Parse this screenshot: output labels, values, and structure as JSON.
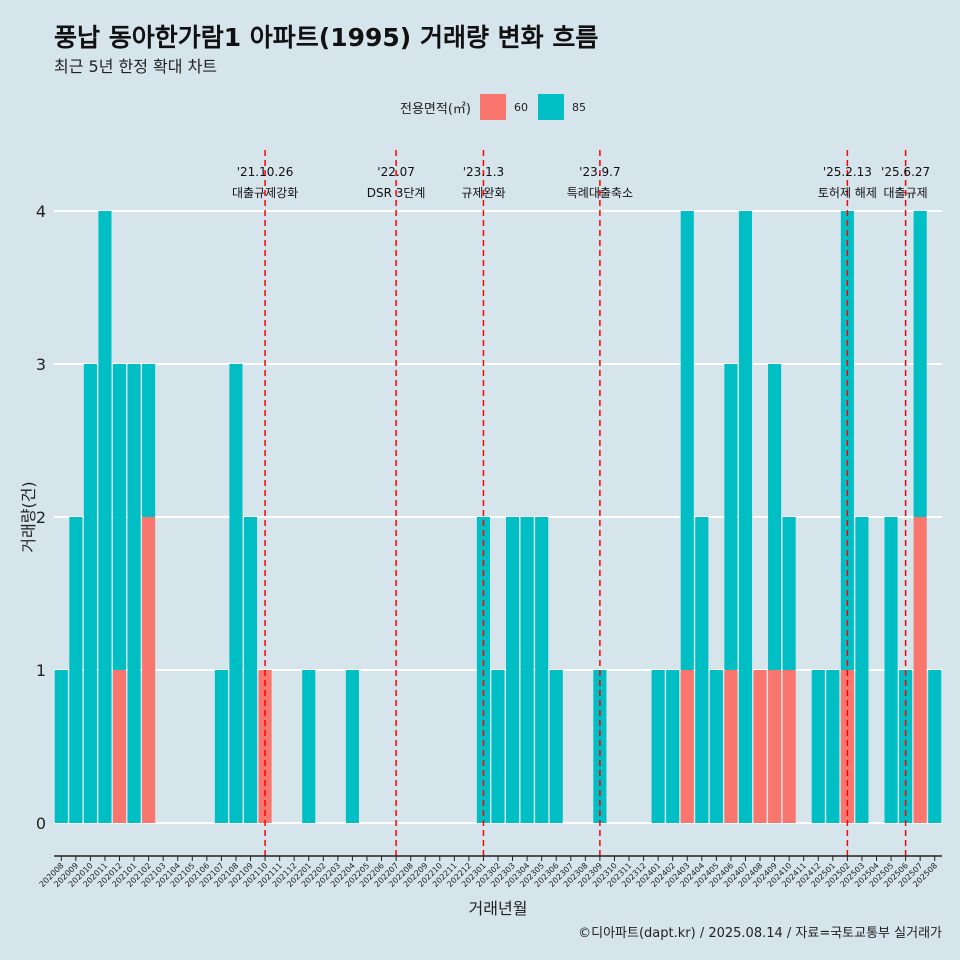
{
  "title": "풍납 동아한가람1 아파트(1995) 거래량 변화 흐름",
  "subtitle": "최근 5년 한정 확대 차트",
  "caption": "©디아파트(dapt.kr) / 2025.08.14 / 자료=국토교통부 실거래가",
  "colors": {
    "background": "#d6e4ec",
    "series_60": "#f8766d",
    "series_85": "#00bfc4",
    "event_line": "#ff0000",
    "grid": "#ffffff"
  },
  "chart_data": {
    "type": "bar",
    "stacked": true,
    "xlabel": "거래년월",
    "ylabel": "거래량(건)",
    "ylim": [
      0,
      4
    ],
    "yticks": [
      0,
      1,
      2,
      3,
      4
    ],
    "grid": true,
    "legend_position": "top",
    "legend_title": "전용면적(㎡)",
    "categories": [
      "202008",
      "202009",
      "202010",
      "202011",
      "202012",
      "202101",
      "202102",
      "202103",
      "202104",
      "202105",
      "202106",
      "202107",
      "202108",
      "202109",
      "202110",
      "202111",
      "202112",
      "202201",
      "202202",
      "202203",
      "202204",
      "202205",
      "202206",
      "202207",
      "202208",
      "202209",
      "202210",
      "202211",
      "202212",
      "202301",
      "202302",
      "202303",
      "202304",
      "202305",
      "202306",
      "202307",
      "202308",
      "202309",
      "202310",
      "202311",
      "202312",
      "202401",
      "202402",
      "202403",
      "202404",
      "202405",
      "202406",
      "202407",
      "202408",
      "202409",
      "202410",
      "202411",
      "202412",
      "202501",
      "202502",
      "202503",
      "202504",
      "202505",
      "202506",
      "202507",
      "202508"
    ],
    "series": [
      {
        "name": "60",
        "color": "#f8766d",
        "values": [
          0,
          0,
          0,
          0,
          1,
          0,
          2,
          0,
          0,
          0,
          0,
          0,
          0,
          0,
          1,
          0,
          0,
          0,
          0,
          0,
          0,
          0,
          0,
          0,
          0,
          0,
          0,
          0,
          0,
          0,
          0,
          0,
          0,
          0,
          0,
          0,
          0,
          0,
          0,
          0,
          0,
          0,
          0,
          1,
          0,
          0,
          1,
          0,
          1,
          1,
          1,
          0,
          0,
          0,
          1,
          0,
          0,
          0,
          0,
          2,
          0
        ]
      },
      {
        "name": "85",
        "color": "#00bfc4",
        "values": [
          1,
          2,
          3,
          4,
          2,
          3,
          1,
          0,
          0,
          0,
          0,
          1,
          3,
          2,
          0,
          0,
          0,
          1,
          0,
          0,
          1,
          0,
          0,
          0,
          0,
          0,
          0,
          0,
          0,
          2,
          1,
          2,
          2,
          2,
          1,
          0,
          0,
          1,
          0,
          0,
          0,
          1,
          1,
          3,
          2,
          1,
          2,
          4,
          0,
          2,
          1,
          0,
          1,
          1,
          3,
          2,
          0,
          2,
          1,
          2,
          1
        ]
      }
    ],
    "events": [
      {
        "x": "202110",
        "date": "'21.10.26",
        "label": "대출규제강화"
      },
      {
        "x": "202207",
        "date": "'22.07",
        "label": "DSR 3단계"
      },
      {
        "x": "202301",
        "date": "'23.1.3",
        "label": "규제완화"
      },
      {
        "x": "202309",
        "date": "'23.9.7",
        "label": "특례대출축소"
      },
      {
        "x": "202502",
        "date": "'25.2.13",
        "label": "토허제 해제"
      },
      {
        "x": "202506",
        "date": "'25.6.27",
        "label": "대출규제"
      }
    ]
  }
}
